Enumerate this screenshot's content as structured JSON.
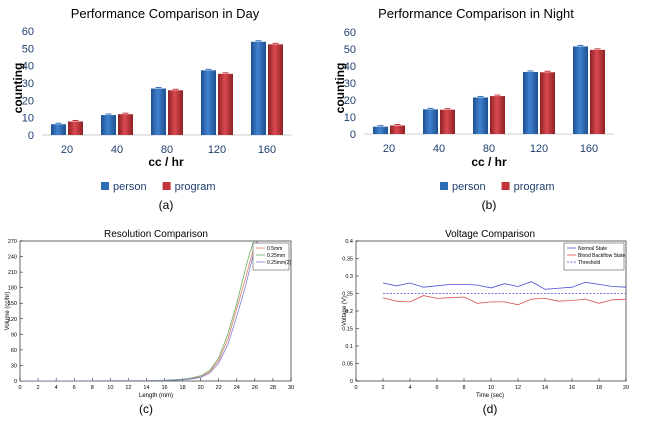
{
  "chart_data": [
    {
      "type": "bar",
      "title": "Performance Comparison in Day",
      "xlabel": "cc / hr",
      "ylabel": "counting",
      "categories": [
        "20",
        "40",
        "80",
        "120",
        "160"
      ],
      "series": [
        {
          "name": "person",
          "values": [
            6.2,
            11.5,
            26.8,
            37.3,
            53.8
          ],
          "color": "#2e6db4"
        },
        {
          "name": "program",
          "values": [
            7.8,
            12.0,
            25.8,
            35.3,
            52.3
          ],
          "color": "#c0343a"
        }
      ],
      "ylim": [
        0,
        60
      ],
      "yticks": [
        "0",
        "10",
        "20",
        "30",
        "40",
        "50",
        "60"
      ],
      "legend": "bottom",
      "caption": "(a)"
    },
    {
      "type": "bar",
      "title": "Performance Comparison in Night",
      "xlabel": "cc / hr",
      "ylabel": "counting",
      "categories": [
        "20",
        "40",
        "80",
        "120",
        "160"
      ],
      "series": [
        {
          "name": "person",
          "values": [
            4.3,
            14.5,
            21.5,
            36.5,
            51.5
          ],
          "color": "#2e6db4"
        },
        {
          "name": "program",
          "values": [
            5.0,
            14.3,
            22.3,
            36.3,
            49.5
          ],
          "color": "#c0343a"
        }
      ],
      "ylim": [
        0,
        60
      ],
      "yticks": [
        "0",
        "10",
        "20",
        "30",
        "40",
        "50",
        "60"
      ],
      "legend": "bottom",
      "caption": "(b)"
    },
    {
      "type": "line",
      "title": "Resolution Comparison",
      "xlabel": "Length (mm)",
      "ylabel": "Volume (cc/hr)",
      "xlim": [
        0,
        30
      ],
      "ylim": [
        0,
        270
      ],
      "xticks": [
        "0",
        "2",
        "4",
        "6",
        "8",
        "10",
        "12",
        "14",
        "16",
        "18",
        "20",
        "22",
        "24",
        "26",
        "28",
        "30"
      ],
      "yticks": [
        "0",
        "30",
        "60",
        "90",
        "120",
        "150",
        "180",
        "210",
        "240",
        "270"
      ],
      "series": [
        {
          "name": "0.5mm",
          "color": "#e07a5f",
          "x": [
            0,
            14,
            16,
            18,
            19,
            20,
            21,
            22,
            23,
            24,
            25,
            25.6,
            26.2
          ],
          "y": [
            0,
            0.5,
            1.5,
            3,
            5,
            8,
            18,
            40,
            80,
            140,
            200,
            240,
            270
          ]
        },
        {
          "name": "0.25mm",
          "color": "#6aaa64",
          "x": [
            0,
            14,
            16,
            18,
            19,
            20,
            21,
            22,
            23,
            24,
            24.8,
            25.4,
            25.9
          ],
          "y": [
            0,
            0.5,
            1.5,
            3,
            6,
            10,
            20,
            45,
            90,
            150,
            205,
            245,
            270
          ]
        },
        {
          "name": "0.25mm(2)",
          "color": "#7a7fd4",
          "x": [
            0,
            14,
            16,
            18,
            19,
            20,
            21,
            22,
            23,
            24,
            25,
            25.7,
            26.3
          ],
          "y": [
            0,
            0.5,
            1,
            2.5,
            4,
            7,
            15,
            35,
            70,
            125,
            185,
            235,
            270
          ]
        }
      ],
      "legend": "top-right",
      "caption": "(c)"
    },
    {
      "type": "line",
      "title": "Voltage Comparison",
      "xlabel": "Time (sec)",
      "ylabel": "Voltage (V)",
      "xlim": [
        0,
        20
      ],
      "ylim": [
        0,
        0.4
      ],
      "xticks": [
        "0",
        "2",
        "4",
        "6",
        "8",
        "10",
        "12",
        "14",
        "16",
        "18",
        "20"
      ],
      "yticks": [
        "0",
        "0.05",
        "0.1",
        "0.15",
        "0.2",
        "0.25",
        "0.3",
        "0.35",
        "0.4"
      ],
      "series": [
        {
          "name": "Normal State",
          "color": "#4a4fd0",
          "dash": false,
          "x": [
            2,
            3,
            4,
            5,
            6,
            7,
            8,
            9,
            10,
            11,
            12,
            13,
            14,
            15,
            16,
            17,
            18,
            19,
            20
          ],
          "y": [
            0.28,
            0.272,
            0.28,
            0.268,
            0.272,
            0.276,
            0.276,
            0.274,
            0.266,
            0.278,
            0.27,
            0.284,
            0.262,
            0.265,
            0.268,
            0.282,
            0.276,
            0.27,
            0.268
          ]
        },
        {
          "name": "Blood Backflow State",
          "color": "#d4504a",
          "dash": false,
          "x": [
            2,
            3,
            4,
            5,
            6,
            7,
            8,
            9,
            10,
            11,
            12,
            13,
            14,
            15,
            16,
            17,
            18,
            19,
            20
          ],
          "y": [
            0.238,
            0.228,
            0.226,
            0.244,
            0.236,
            0.238,
            0.24,
            0.222,
            0.226,
            0.226,
            0.218,
            0.234,
            0.236,
            0.228,
            0.23,
            0.234,
            0.222,
            0.232,
            0.234
          ]
        },
        {
          "name": "Threshold",
          "color": "#4a4fd0",
          "dash": true,
          "x": [
            2,
            20
          ],
          "y": [
            0.25,
            0.25
          ]
        }
      ],
      "legend": "top-right",
      "caption": "(d)"
    }
  ]
}
